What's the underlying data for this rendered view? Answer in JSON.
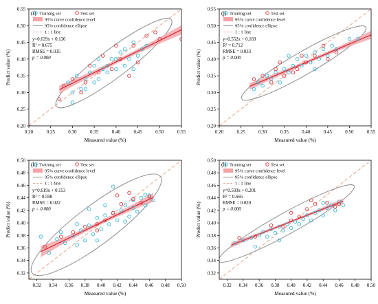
{
  "figure": {
    "legend_labels": [
      "Training set",
      "Test set",
      "95% curve confidence level",
      "95% confidence ellipse",
      "1 : 1 line"
    ],
    "colors": {
      "training": "#3bb8d9",
      "test": "#d9363e",
      "band": "#f4a3a8",
      "fit": "#d6303c",
      "ellipse": "#8f8f8f",
      "oneone": "#e0a58f"
    }
  },
  "chart_data": [
    {
      "type": "scatter",
      "panel_label": "(i)",
      "xlabel": "Measured value (%)",
      "ylabel": "Predict value (%)",
      "xlim": [
        0.2,
        0.55
      ],
      "ylim": [
        0.2,
        0.55
      ],
      "xticks": [
        0.2,
        0.25,
        0.3,
        0.35,
        0.4,
        0.45,
        0.5,
        0.55
      ],
      "yticks": [
        0.2,
        0.25,
        0.3,
        0.35,
        0.4,
        0.45,
        0.5,
        0.55
      ],
      "tick_labels_x": [
        "0.20",
        "0.25",
        "0.30",
        "0.35",
        "0.40",
        "0.45",
        "0.50",
        "0.55"
      ],
      "tick_labels_y": [
        "0.20",
        "0.25",
        "0.30",
        "0.35",
        "0.40",
        "0.45",
        "0.50",
        "0.55"
      ],
      "stats": [
        "y=0.639x + 0.136",
        "R² = 0.675",
        "RMSE = 0.035",
        "p = 0.000"
      ],
      "fit": {
        "slope": 0.639,
        "intercept": 0.136,
        "x_range": [
          0.27,
          0.55
        ],
        "band": [
          0.012,
          0.006,
          0.014
        ]
      },
      "ellipse": {
        "cx": 0.395,
        "cy": 0.388,
        "rx": 0.165,
        "ry": 0.042,
        "angle_deg": 37
      },
      "series": [
        {
          "name": "Training set",
          "points": [
            [
              0.29,
              0.33
            ],
            [
              0.3,
              0.3
            ],
            [
              0.31,
              0.35
            ],
            [
              0.32,
              0.31
            ],
            [
              0.33,
              0.34
            ],
            [
              0.34,
              0.36
            ],
            [
              0.35,
              0.33
            ],
            [
              0.35,
              0.38
            ],
            [
              0.36,
              0.34
            ],
            [
              0.37,
              0.37
            ],
            [
              0.38,
              0.38
            ],
            [
              0.38,
              0.36
            ],
            [
              0.39,
              0.4
            ],
            [
              0.4,
              0.37
            ],
            [
              0.4,
              0.4
            ],
            [
              0.41,
              0.42
            ],
            [
              0.42,
              0.38
            ],
            [
              0.42,
              0.43
            ],
            [
              0.43,
              0.4
            ],
            [
              0.44,
              0.45
            ],
            [
              0.45,
              0.41
            ],
            [
              0.46,
              0.43
            ],
            [
              0.47,
              0.44
            ],
            [
              0.3,
              0.27
            ],
            [
              0.33,
              0.31
            ],
            [
              0.36,
              0.4
            ],
            [
              0.44,
              0.37
            ]
          ]
        },
        {
          "name": "Test set",
          "points": [
            [
              0.27,
              0.28
            ],
            [
              0.28,
              0.32
            ],
            [
              0.3,
              0.34
            ],
            [
              0.32,
              0.3
            ],
            [
              0.34,
              0.38
            ],
            [
              0.36,
              0.36
            ],
            [
              0.37,
              0.41
            ],
            [
              0.39,
              0.37
            ],
            [
              0.41,
              0.4
            ],
            [
              0.43,
              0.35
            ],
            [
              0.44,
              0.44
            ],
            [
              0.45,
              0.39
            ],
            [
              0.47,
              0.47
            ],
            [
              0.49,
              0.48
            ],
            [
              0.5,
              0.46
            ],
            [
              0.55,
              0.46
            ],
            [
              0.4,
              0.44
            ],
            [
              0.33,
              0.33
            ]
          ]
        }
      ]
    },
    {
      "type": "scatter",
      "panel_label": "(j)",
      "xlabel": "Measured value (%)",
      "ylabel": "Predict value (%)",
      "xlim": [
        0.2,
        0.55
      ],
      "ylim": [
        0.2,
        0.55
      ],
      "xticks": [
        0.2,
        0.25,
        0.3,
        0.35,
        0.4,
        0.45,
        0.5,
        0.55
      ],
      "yticks": [
        0.2,
        0.25,
        0.3,
        0.35,
        0.4,
        0.45,
        0.5,
        0.55
      ],
      "tick_labels_x": [
        "0.20",
        "0.25",
        "0.30",
        "0.35",
        "0.40",
        "0.45",
        "0.50",
        "0.55"
      ],
      "tick_labels_y": [
        "0.20",
        "0.25",
        "0.30",
        "0.35",
        "0.40",
        "0.45",
        "0.50",
        "0.55"
      ],
      "stats": [
        "y=0.552x + 0.169",
        "R² = 0.712",
        "RMSE = 0.033",
        "p = 0.000"
      ],
      "fit": {
        "slope": 0.552,
        "intercept": 0.169,
        "x_range": [
          0.27,
          0.55
        ],
        "band": [
          0.01,
          0.005,
          0.012
        ]
      },
      "ellipse": {
        "cx": 0.395,
        "cy": 0.388,
        "rx": 0.165,
        "ry": 0.034,
        "angle_deg": 30
      },
      "series": [
        {
          "name": "Training set",
          "points": [
            [
              0.28,
              0.31
            ],
            [
              0.29,
              0.33
            ],
            [
              0.3,
              0.32
            ],
            [
              0.31,
              0.35
            ],
            [
              0.32,
              0.34
            ],
            [
              0.33,
              0.36
            ],
            [
              0.34,
              0.33
            ],
            [
              0.35,
              0.37
            ],
            [
              0.36,
              0.36
            ],
            [
              0.37,
              0.38
            ],
            [
              0.38,
              0.4
            ],
            [
              0.39,
              0.38
            ],
            [
              0.4,
              0.41
            ],
            [
              0.41,
              0.39
            ],
            [
              0.42,
              0.42
            ],
            [
              0.43,
              0.4
            ],
            [
              0.44,
              0.43
            ],
            [
              0.45,
              0.41
            ],
            [
              0.46,
              0.44
            ],
            [
              0.47,
              0.43
            ],
            [
              0.5,
              0.46
            ],
            [
              0.52,
              0.46
            ],
            [
              0.36,
              0.41
            ],
            [
              0.42,
              0.37
            ]
          ]
        },
        {
          "name": "Test set",
          "points": [
            [
              0.28,
              0.34
            ],
            [
              0.3,
              0.35
            ],
            [
              0.32,
              0.33
            ],
            [
              0.34,
              0.39
            ],
            [
              0.35,
              0.35
            ],
            [
              0.37,
              0.36
            ],
            [
              0.39,
              0.41
            ],
            [
              0.4,
              0.39
            ],
            [
              0.42,
              0.41
            ],
            [
              0.44,
              0.44
            ],
            [
              0.45,
              0.4
            ],
            [
              0.47,
              0.42
            ],
            [
              0.33,
              0.37
            ],
            [
              0.38,
              0.37
            ]
          ]
        }
      ]
    },
    {
      "type": "scatter",
      "panel_label": "(k)",
      "xlabel": "Measured value (%)",
      "ylabel": "Predict value (%)",
      "xlim": [
        0.31,
        0.5
      ],
      "ylim": [
        0.31,
        0.5
      ],
      "xticks": [
        0.32,
        0.34,
        0.36,
        0.38,
        0.4,
        0.42,
        0.44,
        0.46,
        0.48,
        0.5
      ],
      "yticks": [
        0.32,
        0.34,
        0.36,
        0.38,
        0.4,
        0.42,
        0.44,
        0.46,
        0.48,
        0.5
      ],
      "tick_labels_x": [
        "0.32",
        "0.34",
        "0.36",
        "0.38",
        "0.40",
        "0.42",
        "0.44",
        "0.46",
        "0.48",
        "0.50"
      ],
      "tick_labels_y": [
        "0.32",
        "0.34",
        "0.36",
        "0.38",
        "0.40",
        "0.42",
        "0.44",
        "0.46",
        "0.48",
        "0.50"
      ],
      "stats": [
        "y=0.619x + 0.153",
        "R² = 0.598",
        "RMSE = 0.022",
        "p = 0.000"
      ],
      "fit": {
        "slope": 0.619,
        "intercept": 0.153,
        "x_range": [
          0.325,
          0.465
        ],
        "band": [
          0.009,
          0.003,
          0.007
        ]
      },
      "ellipse": {
        "cx": 0.394,
        "cy": 0.397,
        "rx": 0.1,
        "ry": 0.031,
        "angle_deg": 37
      },
      "series": [
        {
          "name": "Training set",
          "points": [
            [
              0.325,
              0.378
            ],
            [
              0.335,
              0.352
            ],
            [
              0.345,
              0.374
            ],
            [
              0.355,
              0.368
            ],
            [
              0.365,
              0.38
            ],
            [
              0.37,
              0.365
            ],
            [
              0.375,
              0.388
            ],
            [
              0.38,
              0.372
            ],
            [
              0.385,
              0.396
            ],
            [
              0.39,
              0.382
            ],
            [
              0.395,
              0.408
            ],
            [
              0.4,
              0.39
            ],
            [
              0.405,
              0.412
            ],
            [
              0.41,
              0.398
            ],
            [
              0.415,
              0.416
            ],
            [
              0.42,
              0.404
            ],
            [
              0.425,
              0.42
            ],
            [
              0.43,
              0.428
            ],
            [
              0.435,
              0.41
            ],
            [
              0.44,
              0.436
            ],
            [
              0.445,
              0.418
            ],
            [
              0.45,
              0.44
            ],
            [
              0.455,
              0.428
            ],
            [
              0.46,
              0.444
            ],
            [
              0.465,
              0.436
            ],
            [
              0.415,
              0.458
            ],
            [
              0.385,
              0.422
            ],
            [
              0.37,
              0.398
            ],
            [
              0.395,
              0.372
            ],
            [
              0.43,
              0.402
            ],
            [
              0.35,
              0.385
            ],
            [
              0.405,
              0.428
            ],
            [
              0.44,
              0.424
            ],
            [
              0.455,
              0.445
            ]
          ]
        },
        {
          "name": "Test set",
          "points": [
            [
              0.33,
              0.362
            ],
            [
              0.35,
              0.378
            ],
            [
              0.365,
              0.385
            ],
            [
              0.38,
              0.394
            ],
            [
              0.395,
              0.398
            ],
            [
              0.405,
              0.404
            ],
            [
              0.415,
              0.416
            ],
            [
              0.425,
              0.43
            ],
            [
              0.435,
              0.448
            ],
            [
              0.44,
              0.438
            ],
            [
              0.45,
              0.432
            ],
            [
              0.46,
              0.442
            ],
            [
              0.42,
              0.444
            ],
            [
              0.395,
              0.388
            ]
          ]
        }
      ]
    },
    {
      "type": "scatter",
      "panel_label": "(l)",
      "xlabel": "Measured value (%)",
      "ylabel": "Predict value (%)",
      "xlim": [
        0.31,
        0.5
      ],
      "ylim": [
        0.31,
        0.5
      ],
      "xticks": [
        0.32,
        0.34,
        0.36,
        0.38,
        0.4,
        0.42,
        0.44,
        0.46,
        0.48,
        0.5
      ],
      "yticks": [
        0.32,
        0.34,
        0.36,
        0.38,
        0.4,
        0.42,
        0.44,
        0.46,
        0.48,
        0.5
      ],
      "tick_labels_x": [
        "0.32",
        "0.34",
        "0.36",
        "0.38",
        "0.40",
        "0.42",
        "0.44",
        "0.46",
        "0.48",
        "0.50"
      ],
      "tick_labels_y": [
        "0.32",
        "0.34",
        "0.36",
        "0.38",
        "0.40",
        "0.42",
        "0.44",
        "0.46",
        "0.48",
        "0.50"
      ],
      "stats": [
        "y=0.503x + 0.201",
        "R² = 0.666",
        "RMSE = 0.020",
        "p = 0.000"
      ],
      "fit": {
        "slope": 0.503,
        "intercept": 0.201,
        "x_range": [
          0.325,
          0.465
        ],
        "band": [
          0.004,
          0.002,
          0.004
        ]
      },
      "ellipse": {
        "cx": 0.394,
        "cy": 0.399,
        "rx": 0.097,
        "ry": 0.017,
        "angle_deg": 29
      },
      "series": [
        {
          "name": "Training set",
          "points": [
            [
              0.33,
              0.368
            ],
            [
              0.34,
              0.372
            ],
            [
              0.35,
              0.376
            ],
            [
              0.36,
              0.38
            ],
            [
              0.365,
              0.386
            ],
            [
              0.37,
              0.378
            ],
            [
              0.375,
              0.39
            ],
            [
              0.38,
              0.384
            ],
            [
              0.385,
              0.394
            ],
            [
              0.39,
              0.388
            ],
            [
              0.395,
              0.398
            ],
            [
              0.4,
              0.392
            ],
            [
              0.405,
              0.402
            ],
            [
              0.41,
              0.398
            ],
            [
              0.415,
              0.406
            ],
            [
              0.42,
              0.412
            ],
            [
              0.425,
              0.404
            ],
            [
              0.43,
              0.416
            ],
            [
              0.435,
              0.42
            ],
            [
              0.44,
              0.412
            ],
            [
              0.445,
              0.424
            ],
            [
              0.45,
              0.428
            ],
            [
              0.455,
              0.42
            ],
            [
              0.46,
              0.434
            ],
            [
              0.465,
              0.428
            ],
            [
              0.355,
              0.362
            ],
            [
              0.385,
              0.372
            ],
            [
              0.44,
              0.432
            ]
          ]
        },
        {
          "name": "Test set",
          "points": [
            [
              0.335,
              0.376
            ],
            [
              0.355,
              0.378
            ],
            [
              0.375,
              0.396
            ],
            [
              0.39,
              0.394
            ],
            [
              0.4,
              0.416
            ],
            [
              0.41,
              0.41
            ],
            [
              0.42,
              0.422
            ],
            [
              0.43,
              0.43
            ],
            [
              0.445,
              0.432
            ],
            [
              0.455,
              0.426
            ],
            [
              0.46,
              0.43
            ],
            [
              0.4,
              0.404
            ],
            [
              0.425,
              0.436
            ]
          ]
        }
      ]
    }
  ]
}
